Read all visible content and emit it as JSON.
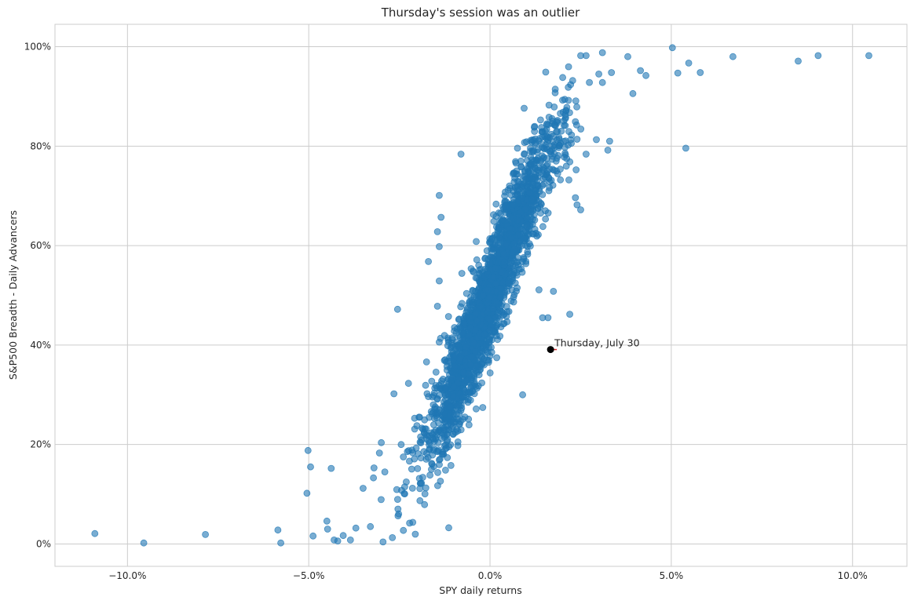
{
  "chart_data": {
    "type": "scatter",
    "title": "Thursday's session was an outlier",
    "xlabel": "SPY daily returns",
    "ylabel": "S&P500 Breadth - Daily Advancers",
    "xlim": [
      -0.12,
      0.115
    ],
    "ylim": [
      -0.045,
      1.045
    ],
    "x_ticks": [
      -0.1,
      -0.05,
      0.0,
      0.05,
      0.1
    ],
    "x_tick_labels": [
      "−10.0%",
      "−5.0%",
      "0.0%",
      "5.0%",
      "10.0%"
    ],
    "y_ticks": [
      0.0,
      0.2,
      0.4,
      0.6,
      0.8,
      1.0
    ],
    "y_tick_labels": [
      "0%",
      "20%",
      "40%",
      "60%",
      "80%",
      "100%"
    ],
    "grid": true,
    "series_color": "#1f77b4",
    "highlight_color": "#000000",
    "annotation_arrow_color": "#d62728",
    "highlight": {
      "x": 0.0167,
      "y": 0.391,
      "label": "Thursday, July 30"
    },
    "notable_points": [
      {
        "x": -0.109,
        "y": 0.021
      },
      {
        "x": -0.0955,
        "y": 0.002
      },
      {
        "x": -0.0785,
        "y": 0.019
      },
      {
        "x": -0.0585,
        "y": 0.028
      },
      {
        "x": -0.0577,
        "y": 0.002
      },
      {
        "x": -0.0502,
        "y": 0.188
      },
      {
        "x": -0.0495,
        "y": 0.155
      },
      {
        "x": -0.0505,
        "y": 0.102
      },
      {
        "x": -0.0488,
        "y": 0.016
      },
      {
        "x": -0.0438,
        "y": 0.152
      },
      {
        "x": -0.045,
        "y": 0.046
      },
      {
        "x": -0.0448,
        "y": 0.03
      },
      {
        "x": -0.043,
        "y": 0.008
      },
      {
        "x": -0.042,
        "y": 0.006
      },
      {
        "x": -0.0405,
        "y": 0.017
      },
      {
        "x": -0.0385,
        "y": 0.008
      },
      {
        "x": -0.037,
        "y": 0.032
      },
      {
        "x": -0.035,
        "y": 0.112
      },
      {
        "x": -0.033,
        "y": 0.035
      },
      {
        "x": -0.032,
        "y": 0.153
      },
      {
        "x": -0.0305,
        "y": 0.183
      },
      {
        "x": -0.0295,
        "y": 0.004
      },
      {
        "x": -0.029,
        "y": 0.145
      },
      {
        "x": -0.0255,
        "y": 0.472
      },
      {
        "x": -0.0265,
        "y": 0.302
      },
      {
        "x": -0.0225,
        "y": 0.323
      },
      {
        "x": -0.0245,
        "y": 0.2
      },
      {
        "x": -0.017,
        "y": 0.568
      },
      {
        "x": -0.014,
        "y": 0.529
      },
      {
        "x": -0.0145,
        "y": 0.478
      },
      {
        "x": -0.0135,
        "y": 0.657
      },
      {
        "x": -0.0145,
        "y": 0.628
      },
      {
        "x": -0.014,
        "y": 0.598
      },
      {
        "x": -0.014,
        "y": 0.406
      },
      {
        "x": -0.0175,
        "y": 0.366
      },
      {
        "x": -0.008,
        "y": 0.784
      },
      {
        "x": -0.014,
        "y": 0.701
      },
      {
        "x": 0.009,
        "y": 0.3
      },
      {
        "x": 0.0145,
        "y": 0.455
      },
      {
        "x": 0.0135,
        "y": 0.511
      },
      {
        "x": 0.0175,
        "y": 0.508
      },
      {
        "x": 0.016,
        "y": 0.455
      },
      {
        "x": 0.022,
        "y": 0.462
      },
      {
        "x": 0.024,
        "y": 0.682
      },
      {
        "x": 0.025,
        "y": 0.672
      },
      {
        "x": 0.0265,
        "y": 0.784
      },
      {
        "x": 0.0325,
        "y": 0.792
      },
      {
        "x": 0.033,
        "y": 0.81
      },
      {
        "x": 0.031,
        "y": 0.988
      },
      {
        "x": 0.038,
        "y": 0.98
      },
      {
        "x": 0.0415,
        "y": 0.952
      },
      {
        "x": 0.043,
        "y": 0.942
      },
      {
        "x": 0.0503,
        "y": 0.998
      },
      {
        "x": 0.0518,
        "y": 0.947
      },
      {
        "x": 0.0548,
        "y": 0.967
      },
      {
        "x": 0.054,
        "y": 0.796
      },
      {
        "x": 0.058,
        "y": 0.948
      },
      {
        "x": 0.067,
        "y": 0.98
      },
      {
        "x": 0.085,
        "y": 0.971
      },
      {
        "x": 0.0905,
        "y": 0.982
      },
      {
        "x": 0.1045,
        "y": 0.982
      },
      {
        "x": 0.025,
        "y": 0.982
      },
      {
        "x": 0.0265,
        "y": 0.982
      },
      {
        "x": 0.03,
        "y": 0.945
      },
      {
        "x": 0.0335,
        "y": 0.948
      },
      {
        "x": 0.031,
        "y": 0.928
      }
    ],
    "trend": {
      "logistic_slope": 78,
      "center_x": 0.0,
      "spread_x": 0.0092,
      "noise_y": 0.055,
      "count": 2300,
      "seed": 7
    }
  }
}
